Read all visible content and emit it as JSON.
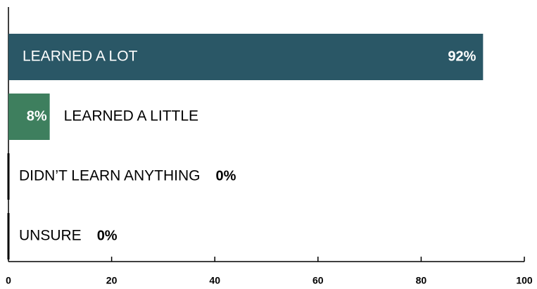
{
  "chart_data": {
    "type": "bar",
    "orientation": "horizontal",
    "categories": [
      "LEARNED A LOT",
      "LEARNED A LITTLE",
      "DIDN’T LEARN ANYTHING",
      "UNSURE"
    ],
    "values": [
      92,
      8,
      0,
      0
    ],
    "value_labels": [
      "92%",
      "8%",
      "0%",
      "0%"
    ],
    "colors": [
      "#2a5766",
      "#3e7f5e",
      "#2a5766",
      "#2a5766"
    ],
    "xlim": [
      0,
      100
    ],
    "xticks": [
      0,
      20,
      40,
      60,
      80,
      100
    ]
  }
}
